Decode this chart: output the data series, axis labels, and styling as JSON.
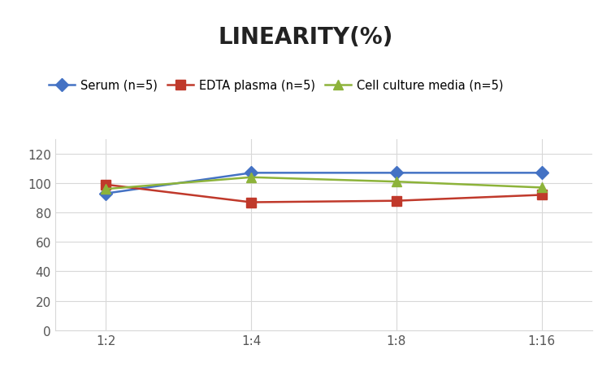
{
  "title": "LINEARITY(%)",
  "x_labels": [
    "1:2",
    "1:4",
    "1:8",
    "1:16"
  ],
  "x_positions": [
    0,
    1,
    2,
    3
  ],
  "series": [
    {
      "label": "Serum (n=5)",
      "values": [
        93,
        107,
        107,
        107
      ],
      "color": "#4472C4",
      "marker": "D",
      "linestyle": "-",
      "linewidth": 1.8,
      "markersize": 8
    },
    {
      "label": "EDTA plasma (n=5)",
      "values": [
        99,
        87,
        88,
        92
      ],
      "color": "#C0392B",
      "marker": "s",
      "linestyle": "-",
      "linewidth": 1.8,
      "markersize": 8
    },
    {
      "label": "Cell culture media (n=5)",
      "values": [
        96,
        104,
        101,
        97
      ],
      "color": "#8DB33A",
      "marker": "^",
      "linestyle": "-",
      "linewidth": 1.8,
      "markersize": 8
    }
  ],
  "ylim": [
    0,
    130
  ],
  "yticks": [
    0,
    20,
    40,
    60,
    80,
    100,
    120
  ],
  "title_fontsize": 20,
  "title_fontweight": "bold",
  "legend_fontsize": 10.5,
  "tick_fontsize": 11,
  "background_color": "#ffffff",
  "grid_color": "#d8d8d8",
  "plot_bg": "#ffffff"
}
